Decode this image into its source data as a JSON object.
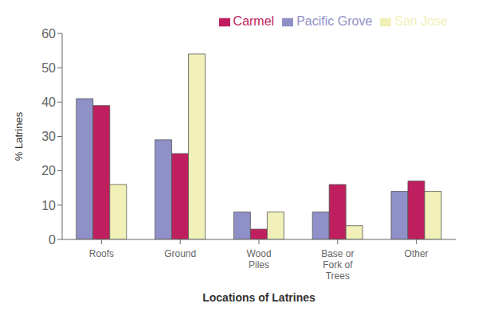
{
  "chart_data": {
    "type": "bar",
    "xlabel": "Locations of Latrines",
    "ylabel": "% Latrines",
    "categories": [
      "Roofs",
      "Ground",
      "Wood\nPiles",
      "Base or\nFork of\nTrees",
      "Other"
    ],
    "series": [
      {
        "name": "Pacific Grove",
        "color": "#9090c8",
        "values": [
          41,
          29,
          8,
          8,
          14
        ]
      },
      {
        "name": "Carmel",
        "color": "#bf1f5e",
        "values": [
          39,
          25,
          3,
          16,
          17
        ]
      },
      {
        "name": "San Jose",
        "color": "#f0f0b8",
        "values": [
          16,
          54,
          8,
          4,
          14
        ]
      }
    ],
    "ylim": [
      0,
      60
    ],
    "yticks": [
      0,
      10,
      20,
      30,
      40,
      50,
      60
    ],
    "grid": false,
    "legend": "upper right"
  }
}
